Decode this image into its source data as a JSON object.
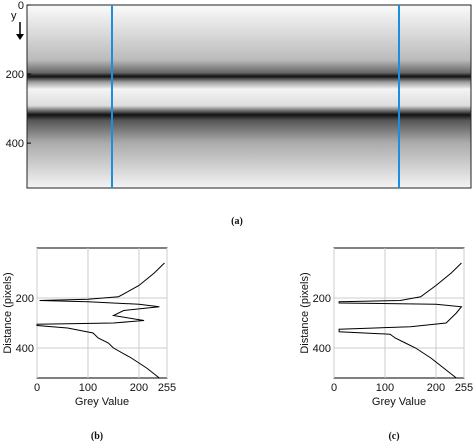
{
  "panel_a": {
    "caption": "(a)",
    "axis_label": "y",
    "ylim": [
      0,
      530
    ],
    "yticks": [
      0,
      200,
      400
    ]
  },
  "panel_b": {
    "caption": "(b)",
    "xlabel": "Grey Value",
    "ylabel": "Distance (pixels)",
    "xlim": [
      0,
      255
    ],
    "ylim": [
      0,
      520
    ],
    "xticks": [
      0,
      100,
      200,
      255
    ],
    "yticks": [
      200,
      400
    ],
    "distance": [
      60,
      100,
      150,
      195,
      205,
      210,
      215,
      225,
      235,
      250,
      270,
      290,
      300,
      305,
      310,
      320,
      340,
      360,
      380,
      400,
      440,
      480,
      520
    ],
    "grey_value": [
      250,
      230,
      200,
      160,
      100,
      5,
      100,
      200,
      240,
      170,
      150,
      210,
      150,
      0,
      0,
      60,
      110,
      120,
      140,
      150,
      185,
      215,
      240
    ]
  },
  "panel_c": {
    "caption": "(c)",
    "xlabel": "Grey Value",
    "ylabel": "Distance (pixels)",
    "xlim": [
      0,
      255
    ],
    "ylim": [
      0,
      520
    ],
    "xticks": [
      0,
      100,
      200,
      255
    ],
    "yticks": [
      200,
      400
    ],
    "distance": [
      60,
      100,
      150,
      195,
      210,
      215,
      220,
      225,
      235,
      260,
      280,
      300,
      315,
      325,
      335,
      345,
      360,
      380,
      400,
      440,
      480,
      520
    ],
    "grey_value": [
      250,
      230,
      200,
      170,
      130,
      10,
      10,
      200,
      250,
      240,
      230,
      220,
      150,
      10,
      10,
      110,
      120,
      140,
      160,
      190,
      215,
      240
    ]
  }
}
